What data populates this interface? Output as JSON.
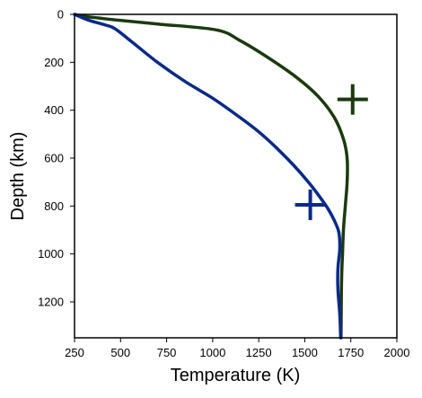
{
  "chart_data": {
    "type": "line",
    "title": "",
    "xlabel": "Temperature (K)",
    "ylabel": "Depth (km)",
    "xlim": [
      250,
      2000
    ],
    "ylim": [
      0,
      1350
    ],
    "y_inverted": true,
    "grid": false,
    "x_ticks": [
      "250",
      "500",
      "750",
      "1000",
      "1250",
      "1500",
      "1750",
      "2000"
    ],
    "y_ticks": [
      "0",
      "200",
      "400",
      "600",
      "800",
      "1000",
      "1200"
    ],
    "series": [
      {
        "color": "#1b3a0f",
        "x": [
          250,
          300,
          380,
          460,
          700,
          1020,
          1150,
          1300,
          1450,
          1570,
          1660,
          1710,
          1730,
          1730,
          1720,
          1710,
          1705,
          1700,
          1698,
          1697
        ],
        "y": [
          0,
          8,
          15,
          22,
          40,
          65,
          110,
          180,
          260,
          340,
          430,
          520,
          600,
          700,
          800,
          900,
          1000,
          1100,
          1250,
          1350
        ]
      },
      {
        "color": "#0a2a8a",
        "x": [
          250,
          330,
          420,
          470,
          570,
          700,
          850,
          1000,
          1130,
          1250,
          1350,
          1440,
          1520,
          1580,
          1625,
          1660,
          1685,
          1690,
          1680,
          1680,
          1690,
          1695
        ],
        "y": [
          0,
          25,
          45,
          60,
          120,
          200,
          280,
          350,
          420,
          490,
          560,
          630,
          700,
          760,
          810,
          860,
          910,
          980,
          1060,
          1150,
          1250,
          1350
        ]
      }
    ],
    "markers": [
      {
        "color": "#1b3a0f",
        "x": 1760,
        "y": 355
      },
      {
        "color": "#0a2a8a",
        "x": 1530,
        "y": 795
      }
    ]
  }
}
